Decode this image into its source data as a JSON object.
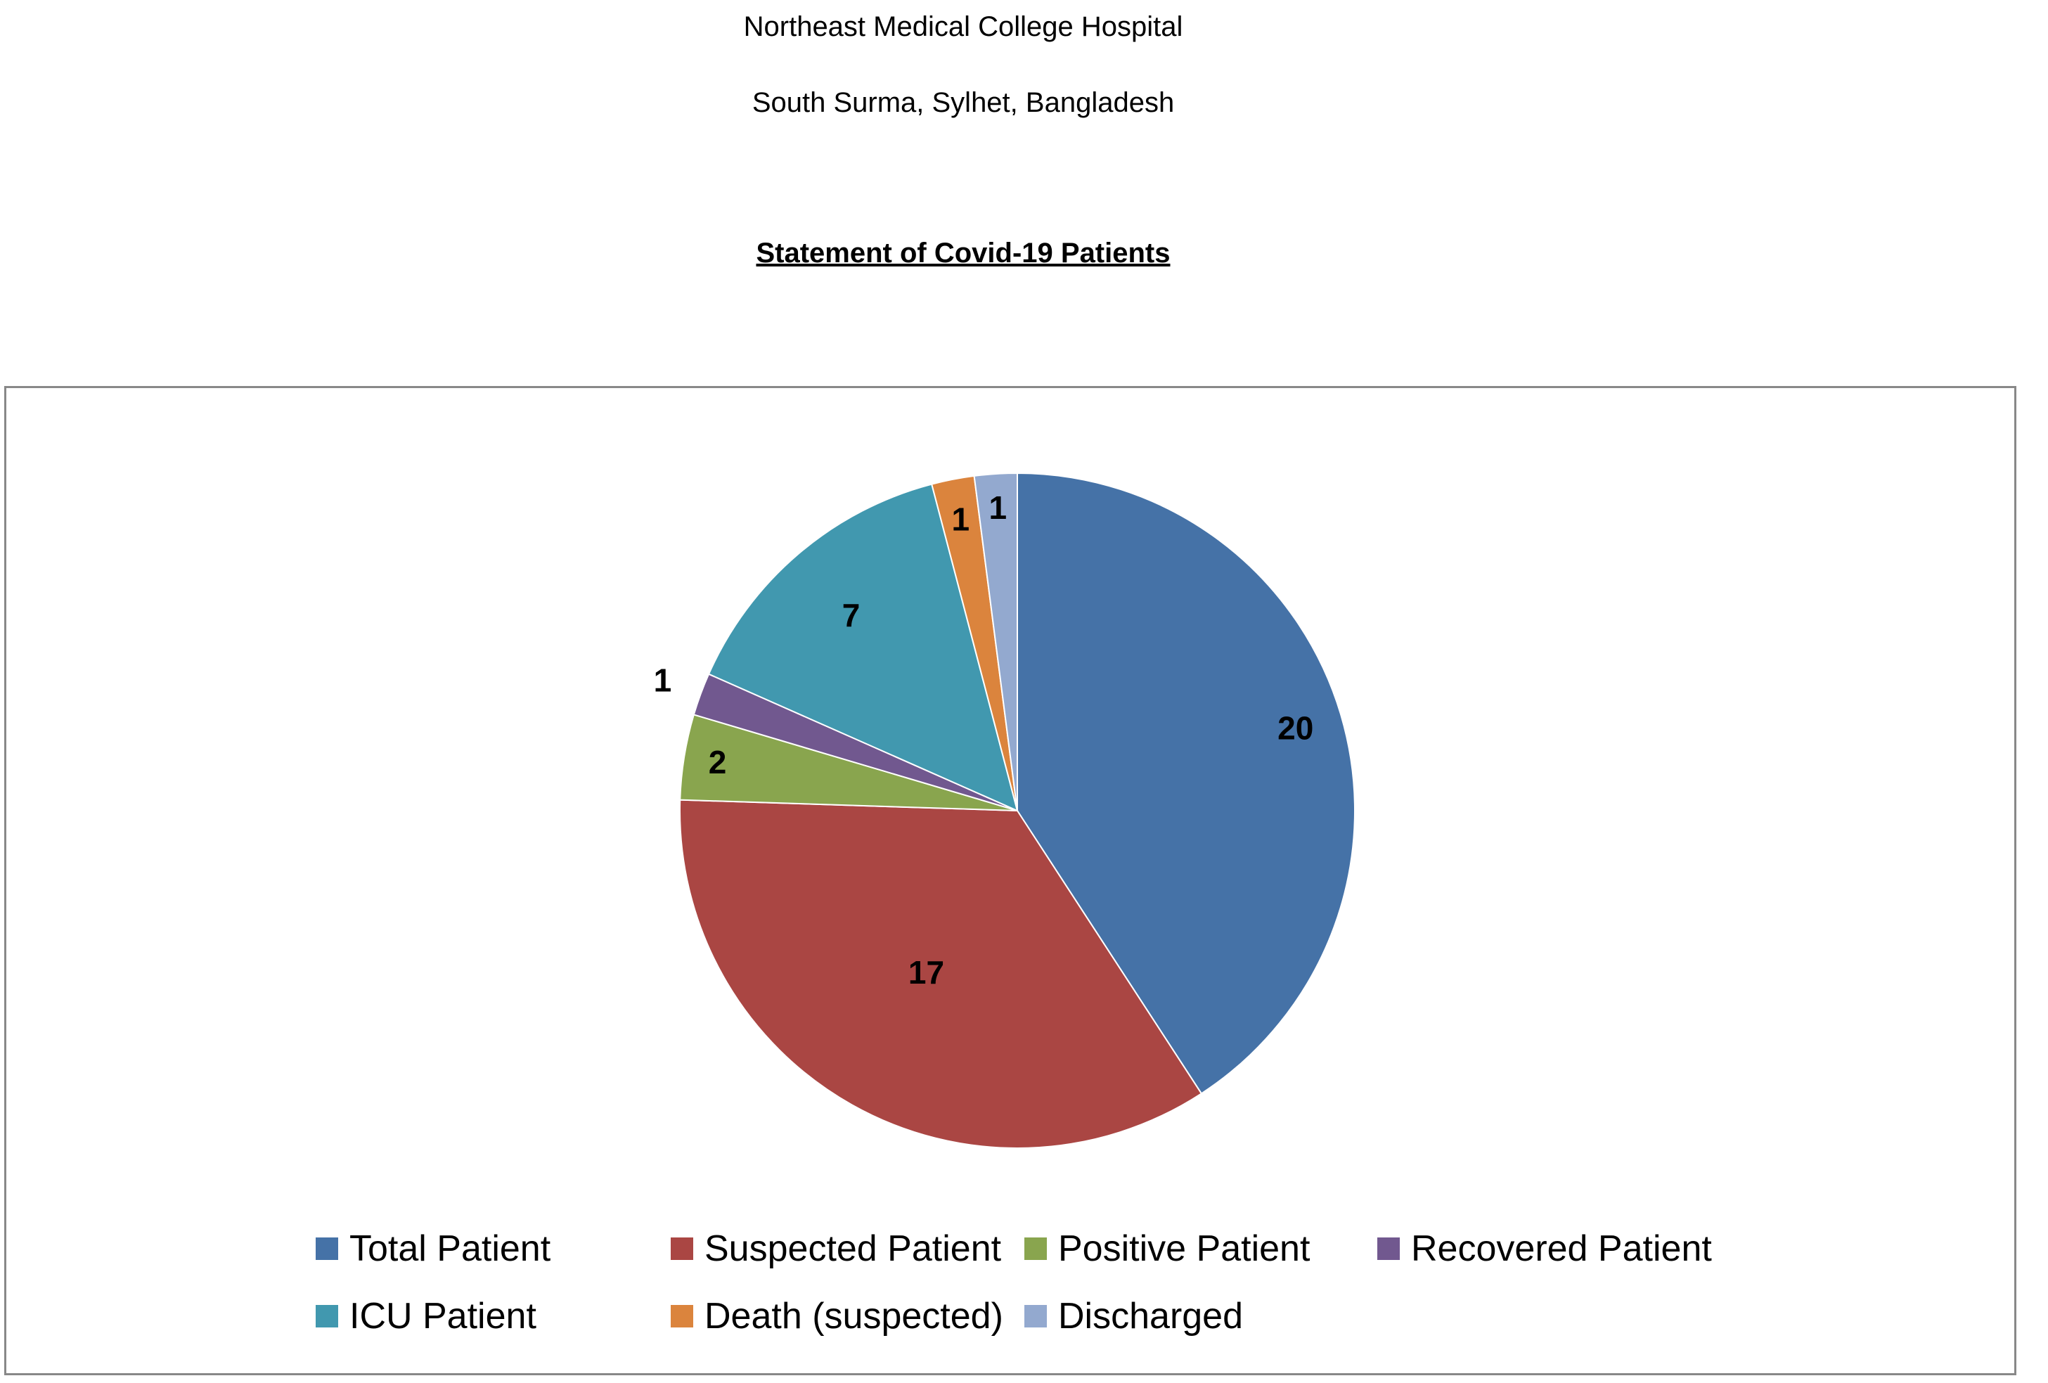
{
  "header": {
    "line1": "Northeast Medical College Hospital",
    "line2": "South Surma, Sylhet, Bangladesh",
    "title": "Statement of Covid-19 Patients"
  },
  "chart_data": {
    "type": "pie",
    "title": "Statement of Covid-19 Patients",
    "legend_position": "bottom",
    "categories": [
      "Total Patient",
      "Suspected Patient",
      "Positive Patient",
      "Recovered Patient",
      "ICU Patient",
      "Death (suspected)",
      "Discharged"
    ],
    "values": [
      20,
      17,
      2,
      1,
      7,
      1,
      1
    ],
    "colors": [
      "#4572A7",
      "#AA4643",
      "#89A54E",
      "#71588F",
      "#4198AF",
      "#DB843D",
      "#93A9CF"
    ],
    "data_labels": [
      "20",
      "17",
      "2",
      "1",
      "7",
      "1",
      "1"
    ]
  }
}
